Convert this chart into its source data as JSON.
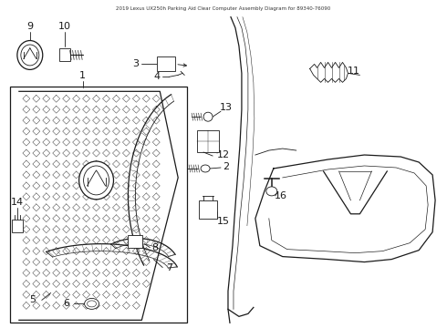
{
  "title": "2019 Lexus UX250h Parking Aid Clear Computer Assembly Diagram for 89340-76090",
  "bg": "#ffffff",
  "lc": "#1a1a1a",
  "gray": "#666666",
  "fig_w": 4.9,
  "fig_h": 3.6,
  "dpi": 100
}
